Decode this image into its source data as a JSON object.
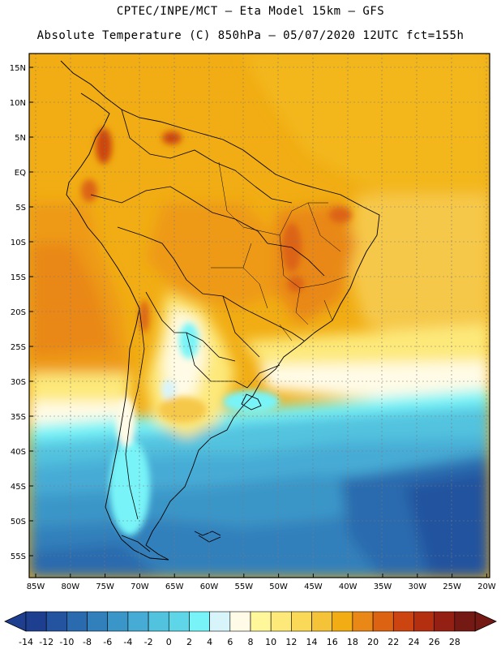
{
  "title_line1": "CPTEC/INPE/MCT –  Eta Model 15km – GFS",
  "title_line2": "Absolute Temperature (C) 850hPa – 05/07/2020 12UTC fct=155h",
  "lat_labels": [
    "15N",
    "10N",
    "5N",
    "EQ",
    "5S",
    "10S",
    "15S",
    "20S",
    "25S",
    "30S",
    "35S",
    "40S",
    "45S",
    "50S",
    "55S"
  ],
  "lon_labels": [
    "85W",
    "80W",
    "75W",
    "70W",
    "65W",
    "60W",
    "55W",
    "50W",
    "45W",
    "40W",
    "35W",
    "30W",
    "25W",
    "20W"
  ],
  "colorbar": {
    "ticks": [
      "-14",
      "-12",
      "-10",
      "-8",
      "-6",
      "-4",
      "-2",
      "0",
      "2",
      "4",
      "6",
      "8",
      "10",
      "12",
      "14",
      "16",
      "18",
      "20",
      "22",
      "24",
      "26",
      "28"
    ],
    "colors": [
      "#1e3f8f",
      "#24539f",
      "#2a6aae",
      "#3280bb",
      "#3a96c8",
      "#47acd5",
      "#52c3df",
      "#5fd6e8",
      "#78f4f8",
      "#d8f4fb",
      "#fffbe6",
      "#fff79a",
      "#fde97a",
      "#f9d957",
      "#f5c338",
      "#f1ad13",
      "#e98816",
      "#dc6312",
      "#cc4410",
      "#b32f10",
      "#932012",
      "#741914"
    ]
  }
}
